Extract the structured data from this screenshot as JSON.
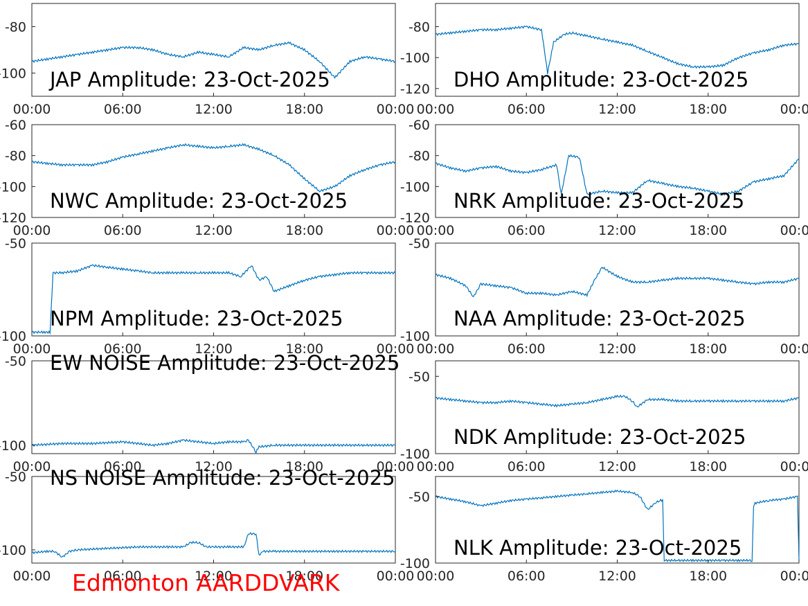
{
  "footer": {
    "text": "Edmonton AARDDVARK",
    "color": "#ff0000"
  },
  "line_color": "#0072bd",
  "chart_data": [
    {
      "type": "line",
      "title": "JAP Amplitude: 23-Oct-2025",
      "xticks": [
        "00:00",
        "06:00",
        "12:00",
        "18:00",
        "00:00"
      ],
      "ylim": [
        -110,
        -70
      ],
      "yticks": [
        -80,
        -100
      ],
      "ytick_labels": [
        "-80",
        "-100"
      ],
      "series": [
        {
          "x": [
            0,
            1,
            2,
            3,
            4,
            5,
            6,
            7,
            8,
            9,
            10,
            11,
            12,
            13,
            14,
            15,
            16,
            17,
            18,
            19,
            20,
            21,
            22,
            23,
            24
          ],
          "values": [
            -95,
            -94,
            -93,
            -92,
            -91,
            -90,
            -89,
            -89,
            -90,
            -92,
            -93,
            -91,
            -92,
            -93,
            -89,
            -90,
            -88,
            -87,
            -90,
            -95,
            -102,
            -95,
            -93,
            -94,
            -95
          ]
        }
      ]
    },
    {
      "type": "line",
      "title": "DHO Amplitude: 23-Oct-2025",
      "xticks": [
        "00:00",
        "06:00",
        "12:00",
        "18:00",
        "00:00"
      ],
      "ylim": [
        -125,
        -65
      ],
      "yticks": [
        -80,
        -100,
        -120
      ],
      "ytick_labels": [
        "-80",
        "-100",
        "-120"
      ],
      "series": [
        {
          "x": [
            0,
            1,
            2,
            3,
            4,
            5,
            6,
            7,
            7.4,
            7.8,
            8.5,
            9,
            10,
            11,
            12,
            13,
            14,
            15,
            16,
            17,
            18,
            19,
            20,
            21,
            22,
            23,
            24
          ],
          "values": [
            -85,
            -84,
            -83,
            -82,
            -82,
            -81,
            -80,
            -82,
            -110,
            -90,
            -85,
            -84,
            -86,
            -88,
            -90,
            -92,
            -96,
            -100,
            -104,
            -106,
            -106,
            -105,
            -100,
            -97,
            -95,
            -92,
            -91
          ]
        }
      ]
    },
    {
      "type": "line",
      "title": "NWC Amplitude: 23-Oct-2025",
      "xticks": [
        "00:00",
        "06:00",
        "12:00",
        "18:00",
        "00:00"
      ],
      "ylim": [
        -120,
        -60
      ],
      "yticks": [
        -60,
        -80,
        -100,
        -120
      ],
      "ytick_labels": [
        "-60",
        "-80",
        "-100",
        "-120"
      ],
      "series": [
        {
          "x": [
            0,
            1,
            2,
            3,
            4,
            5,
            6,
            7,
            8,
            9,
            10,
            11,
            12,
            13,
            14,
            15,
            16,
            17,
            18,
            19,
            20,
            21,
            22,
            23,
            24
          ],
          "values": [
            -84,
            -85,
            -86,
            -86,
            -86,
            -84,
            -81,
            -79,
            -77,
            -75,
            -73,
            -74,
            -75,
            -74,
            -73,
            -76,
            -80,
            -86,
            -95,
            -103,
            -100,
            -93,
            -89,
            -86,
            -84
          ]
        }
      ]
    },
    {
      "type": "line",
      "title": "NRK Amplitude: 23-Oct-2025",
      "xticks": [
        "00:00",
        "06:00",
        "12:00",
        "18:00",
        "00:00"
      ],
      "ylim": [
        -120,
        -60
      ],
      "yticks": [
        -60,
        -80,
        -100,
        -120
      ],
      "ytick_labels": [
        "-60",
        "-80",
        "-100",
        "-120"
      ],
      "series": [
        {
          "x": [
            0,
            1,
            2,
            3,
            4,
            5,
            6,
            7,
            8,
            8.3,
            8.8,
            9.5,
            10,
            11,
            12,
            13,
            14,
            15,
            16,
            17,
            18,
            19,
            20,
            21,
            22,
            23,
            24
          ],
          "values": [
            -85,
            -88,
            -90,
            -88,
            -87,
            -90,
            -91,
            -89,
            -86,
            -105,
            -80,
            -81,
            -105,
            -103,
            -104,
            -104,
            -96,
            -98,
            -100,
            -101,
            -103,
            -105,
            -103,
            -97,
            -95,
            -93,
            -82
          ]
        }
      ]
    },
    {
      "type": "line",
      "title": "NPM Amplitude: 23-Oct-2025",
      "xticks": [
        "00:00",
        "06:00",
        "12:00",
        "18:00",
        "00:00"
      ],
      "ylim": [
        -100,
        -50
      ],
      "yticks": [
        -50,
        -100
      ],
      "ytick_labels": [
        "-50",
        "-100"
      ],
      "series": [
        {
          "x": [
            0,
            0.8,
            1.2,
            1.4,
            2,
            3,
            4,
            5,
            6,
            7,
            8,
            9,
            10,
            11,
            12,
            13,
            13.8,
            14.5,
            15,
            15.5,
            16,
            17,
            18,
            19,
            20,
            21,
            22,
            23,
            24
          ],
          "values": [
            -98,
            -98,
            -98,
            -66,
            -66,
            -65,
            -62,
            -63,
            -64,
            -65,
            -66,
            -66,
            -66,
            -66,
            -66,
            -66,
            -68,
            -62,
            -70,
            -68,
            -76,
            -73,
            -70,
            -68,
            -67,
            -66,
            -66,
            -66,
            -66
          ]
        }
      ]
    },
    {
      "type": "line",
      "title": "NAA Amplitude: 23-Oct-2025",
      "xticks": [
        "00:00",
        "06:00",
        "12:00",
        "18:00",
        "00:00"
      ],
      "ylim": [
        -100,
        -50
      ],
      "yticks": [
        -50,
        -100
      ],
      "ytick_labels": [
        "-50",
        "-100"
      ],
      "series": [
        {
          "x": [
            0,
            1,
            2,
            2.5,
            3,
            4,
            5,
            6,
            7,
            8,
            9,
            10,
            10.5,
            11,
            12,
            13,
            14,
            15,
            16,
            17,
            18,
            19,
            20,
            21,
            22,
            23,
            24
          ],
          "values": [
            -67,
            -69,
            -73,
            -79,
            -72,
            -73,
            -74,
            -77,
            -77,
            -78,
            -76,
            -78,
            -70,
            -63,
            -68,
            -71,
            -71,
            -70,
            -69,
            -69,
            -69,
            -70,
            -71,
            -72,
            -71,
            -71,
            -69
          ]
        }
      ]
    },
    {
      "type": "line",
      "title": "EW NOISE Amplitude: 23-Oct-2025",
      "xticks": [
        "00:00",
        "06:00",
        "12:00",
        "18:00",
        "00:00"
      ],
      "ylim": [
        -105,
        -50
      ],
      "yticks": [
        -50,
        -100
      ],
      "ytick_labels": [
        "-50",
        "-100"
      ],
      "series": [
        {
          "x": [
            0,
            2,
            4,
            6,
            8,
            9,
            10,
            12,
            13,
            14,
            14.3,
            14.8,
            15,
            16,
            18,
            20,
            22,
            24
          ],
          "values": [
            -100,
            -99,
            -99,
            -98,
            -100,
            -99,
            -97,
            -99,
            -98,
            -98,
            -97,
            -104,
            -101,
            -100,
            -100,
            -100,
            -100,
            -100
          ]
        }
      ]
    },
    {
      "type": "line",
      "title": "NDK Amplitude: 23-Oct-2025",
      "xticks": [
        "00:00",
        "06:00",
        "12:00",
        "18:00",
        "00:00"
      ],
      "ylim": [
        -100,
        -40
      ],
      "yticks": [
        -50,
        -100
      ],
      "ytick_labels": [
        "-50",
        "-100"
      ],
      "series": [
        {
          "x": [
            0,
            1,
            2,
            3,
            4,
            5,
            6,
            7,
            8,
            9,
            10,
            11,
            12,
            12.5,
            13,
            13.3,
            14,
            15,
            16,
            17,
            18,
            19,
            20,
            21,
            22,
            23,
            24
          ],
          "values": [
            -64,
            -65,
            -66,
            -67,
            -67,
            -66,
            -67,
            -68,
            -69,
            -68,
            -67,
            -65,
            -63,
            -63,
            -66,
            -70,
            -65,
            -65,
            -66,
            -66,
            -66,
            -66,
            -66,
            -66,
            -66,
            -66,
            -64
          ]
        }
      ]
    },
    {
      "type": "line",
      "title": "NS NOISE Amplitude: 23-Oct-2025",
      "xticks": [
        "00:00",
        "06:00",
        "12:00",
        "18:00",
        "00:00"
      ],
      "ylim": [
        -109,
        -50
      ],
      "yticks": [
        -50,
        -100
      ],
      "ytick_labels": [
        "-50",
        "-100"
      ],
      "series": [
        {
          "x": [
            0,
            1,
            1.5,
            2,
            2.5,
            3,
            5,
            7,
            9,
            10,
            10.5,
            11,
            11.5,
            12,
            13,
            14,
            14.3,
            14.8,
            15,
            15.2,
            16,
            18,
            20,
            22,
            24
          ],
          "values": [
            -102,
            -101,
            -101,
            -105,
            -101,
            -100,
            -99,
            -98,
            -98,
            -98,
            -95,
            -95,
            -98,
            -98,
            -98,
            -98,
            -89,
            -89,
            -104,
            -101,
            -101,
            -101,
            -101,
            -101,
            -101
          ]
        }
      ]
    },
    {
      "type": "line",
      "title": "NLK Amplitude: 23-Oct-2025",
      "xticks": [
        "00:00",
        "06:00",
        "12:00",
        "18:00",
        "00:00"
      ],
      "ylim": [
        -100,
        -35
      ],
      "yticks": [
        -50,
        -100
      ],
      "ytick_labels": [
        "-50",
        "-100"
      ],
      "series": [
        {
          "x": [
            0,
            1,
            2,
            3,
            4,
            5,
            6,
            7,
            8,
            9,
            10,
            11,
            12,
            13,
            13.5,
            14,
            14.5,
            14.8,
            15,
            15.1,
            16,
            17,
            18,
            19,
            20,
            20.9,
            21,
            21.1,
            22,
            23,
            23.9,
            24
          ],
          "values": [
            -50,
            -52,
            -54,
            -57,
            -55,
            -53,
            -52,
            -51,
            -50,
            -49,
            -48,
            -47,
            -46,
            -47,
            -50,
            -60,
            -55,
            -53,
            -53,
            -98,
            -98,
            -98,
            -98,
            -98,
            -98,
            -98,
            -58,
            -55,
            -53,
            -52,
            -50,
            -98
          ]
        }
      ]
    }
  ]
}
